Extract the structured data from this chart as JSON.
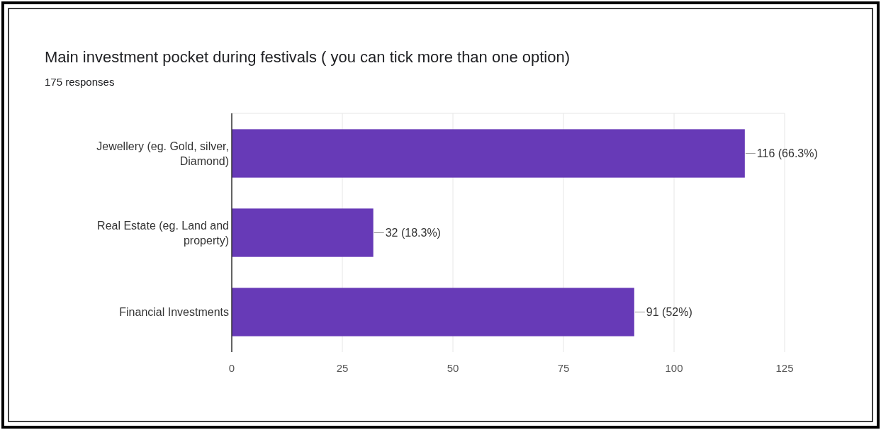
{
  "chart_data": {
    "type": "bar",
    "orientation": "horizontal",
    "title": "Main investment pocket during festivals ( you can tick more than one option)",
    "subtitle": "175 responses",
    "categories": [
      "Jewellery (eg. Gold, silver, Diamond)",
      "Real Estate (eg. Land and property)",
      "Financial Investments"
    ],
    "values": [
      116,
      32,
      91
    ],
    "color": "#673ab7",
    "value_labels": [
      "116 (66.3%)",
      "32 (18.3%)",
      "91 (52%)"
    ],
    "xlim": [
      0,
      125
    ],
    "xticks": [
      0,
      25,
      50,
      75,
      100,
      125
    ],
    "grid": "x"
  }
}
